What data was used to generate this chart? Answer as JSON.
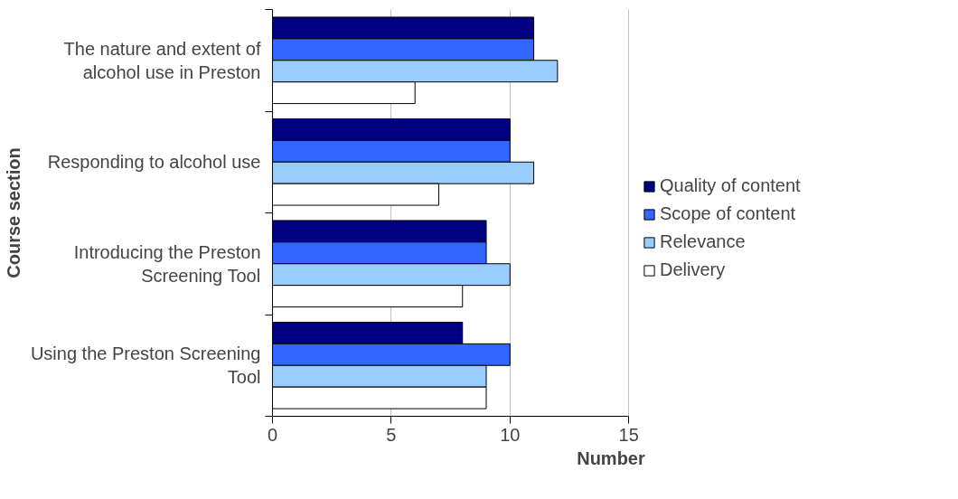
{
  "chart_data": {
    "type": "bar",
    "orientation": "horizontal",
    "xlabel": "Number",
    "ylabel": "Course section",
    "categories": [
      "The nature and extent of alcohol use in Preston",
      "Responding to alcohol use",
      "Introducing the Preston Screening Tool",
      "Using the Preston Screening Tool"
    ],
    "series": [
      {
        "name": "Quality of content",
        "color": "#000080",
        "values": [
          11,
          10,
          9,
          8
        ]
      },
      {
        "name": "Scope of content",
        "color": "#3366ff",
        "values": [
          11,
          10,
          9,
          10
        ]
      },
      {
        "name": "Relevance",
        "color": "#99ccff",
        "values": [
          12,
          11,
          10,
          9
        ]
      },
      {
        "name": "Delivery",
        "color": "#ffffff",
        "values": [
          6,
          7,
          8,
          9
        ]
      }
    ],
    "xlim": [
      0,
      15
    ],
    "xticks": [
      0,
      5,
      10,
      15
    ],
    "grid": "x",
    "legend": "right"
  }
}
